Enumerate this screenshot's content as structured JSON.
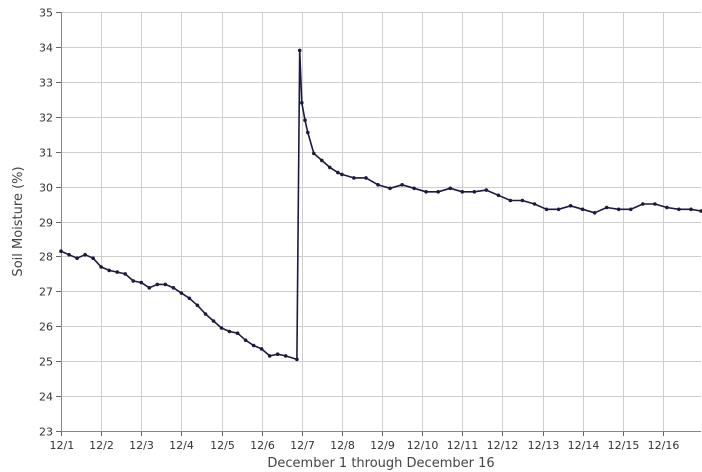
{
  "chart_data": {
    "type": "line",
    "title": "",
    "xlabel": "December 1 through December 16",
    "ylabel": "Soil Moisture (%)",
    "xlim": [
      1,
      16.95
    ],
    "ylim": [
      23,
      35
    ],
    "yticks": [
      23,
      24,
      25,
      26,
      27,
      28,
      29,
      30,
      31,
      32,
      33,
      34,
      35
    ],
    "xticks": [
      {
        "x": 1,
        "label": "12/1"
      },
      {
        "x": 2,
        "label": "12/2"
      },
      {
        "x": 3,
        "label": "12/3"
      },
      {
        "x": 4,
        "label": "12/4"
      },
      {
        "x": 5,
        "label": "12/5"
      },
      {
        "x": 6,
        "label": "12/6"
      },
      {
        "x": 7,
        "label": "12/7"
      },
      {
        "x": 8,
        "label": "12/8"
      },
      {
        "x": 9,
        "label": "12/9"
      },
      {
        "x": 10,
        "label": "12/10"
      },
      {
        "x": 11,
        "label": "12/11"
      },
      {
        "x": 12,
        "label": "12/12"
      },
      {
        "x": 13,
        "label": "12/13"
      },
      {
        "x": 14,
        "label": "12/14"
      },
      {
        "x": 15,
        "label": "12/15"
      },
      {
        "x": 16,
        "label": "12/16"
      }
    ],
    "grid": true,
    "line_color": "#1b1a40",
    "series": [
      {
        "points": [
          [
            1.0,
            28.15
          ],
          [
            1.2,
            28.05
          ],
          [
            1.4,
            27.95
          ],
          [
            1.6,
            28.05
          ],
          [
            1.8,
            27.95
          ],
          [
            2.0,
            27.7
          ],
          [
            2.2,
            27.6
          ],
          [
            2.4,
            27.55
          ],
          [
            2.6,
            27.5
          ],
          [
            2.8,
            27.3
          ],
          [
            3.0,
            27.25
          ],
          [
            3.2,
            27.1
          ],
          [
            3.4,
            27.2
          ],
          [
            3.6,
            27.2
          ],
          [
            3.8,
            27.1
          ],
          [
            4.0,
            26.95
          ],
          [
            4.2,
            26.8
          ],
          [
            4.4,
            26.6
          ],
          [
            4.6,
            26.35
          ],
          [
            4.8,
            26.15
          ],
          [
            5.0,
            25.95
          ],
          [
            5.2,
            25.85
          ],
          [
            5.4,
            25.8
          ],
          [
            5.6,
            25.6
          ],
          [
            5.8,
            25.45
          ],
          [
            6.0,
            25.35
          ],
          [
            6.2,
            25.15
          ],
          [
            6.4,
            25.2
          ],
          [
            6.6,
            25.15
          ],
          [
            6.88,
            25.05
          ],
          [
            6.95,
            33.9
          ],
          [
            7.0,
            32.4
          ],
          [
            7.08,
            31.9
          ],
          [
            7.15,
            31.55
          ],
          [
            7.3,
            30.95
          ],
          [
            7.5,
            30.75
          ],
          [
            7.7,
            30.55
          ],
          [
            7.9,
            30.4
          ],
          [
            8.0,
            30.35
          ],
          [
            8.3,
            30.25
          ],
          [
            8.6,
            30.25
          ],
          [
            8.9,
            30.05
          ],
          [
            9.2,
            29.95
          ],
          [
            9.5,
            30.05
          ],
          [
            9.8,
            29.95
          ],
          [
            10.1,
            29.85
          ],
          [
            10.4,
            29.85
          ],
          [
            10.7,
            29.95
          ],
          [
            11.0,
            29.85
          ],
          [
            11.3,
            29.85
          ],
          [
            11.6,
            29.9
          ],
          [
            11.9,
            29.75
          ],
          [
            12.2,
            29.6
          ],
          [
            12.5,
            29.6
          ],
          [
            12.8,
            29.5
          ],
          [
            13.1,
            29.35
          ],
          [
            13.4,
            29.35
          ],
          [
            13.7,
            29.45
          ],
          [
            14.0,
            29.35
          ],
          [
            14.3,
            29.25
          ],
          [
            14.6,
            29.4
          ],
          [
            14.9,
            29.35
          ],
          [
            15.2,
            29.35
          ],
          [
            15.5,
            29.5
          ],
          [
            15.8,
            29.5
          ],
          [
            16.1,
            29.4
          ],
          [
            16.4,
            29.35
          ],
          [
            16.7,
            29.35
          ],
          [
            16.95,
            29.3
          ]
        ]
      }
    ]
  }
}
